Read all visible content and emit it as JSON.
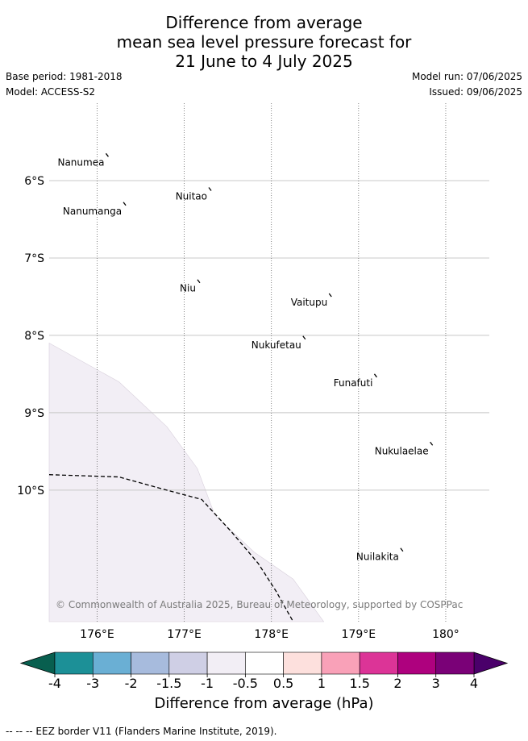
{
  "title": {
    "line1": "Difference from average",
    "line2": "mean sea level pressure forecast for",
    "line3": "21 June to 4 July 2025"
  },
  "meta": {
    "base_period": "Base period: 1981-2018",
    "model": "Model: ACCESS-S2",
    "model_run": "Model run: 07/06/2025",
    "issued": "Issued: 09/06/2025"
  },
  "map": {
    "lon_range": [
      175.45,
      180.5
    ],
    "lat_range": [
      -11.7,
      -5.0
    ],
    "lon_ticks": [
      {
        "value": 176,
        "label": "176°E"
      },
      {
        "value": 177,
        "label": "177°E"
      },
      {
        "value": 178,
        "label": "178°E"
      },
      {
        "value": 179,
        "label": "179°E"
      },
      {
        "value": 180,
        "label": "180°"
      }
    ],
    "lat_ticks": [
      {
        "value": -6,
        "label": "6°S"
      },
      {
        "value": -7,
        "label": "7°S"
      },
      {
        "value": -8,
        "label": "8°S"
      },
      {
        "value": -9,
        "label": "9°S"
      },
      {
        "value": -10,
        "label": "10°S"
      }
    ],
    "islands": [
      {
        "name": "Nanumea",
        "lon": 176.12,
        "lat": -5.67
      },
      {
        "name": "Nuitao",
        "lon": 177.3,
        "lat": -6.11
      },
      {
        "name": "Nanumanga",
        "lon": 176.32,
        "lat": -6.3
      },
      {
        "name": "Niu",
        "lon": 177.17,
        "lat": -7.3
      },
      {
        "name": "Vaitupu",
        "lon": 178.68,
        "lat": -7.48
      },
      {
        "name": "Nukufetau",
        "lon": 178.38,
        "lat": -8.03
      },
      {
        "name": "Funafuti",
        "lon": 179.2,
        "lat": -8.52
      },
      {
        "name": "Nukulaelae",
        "lon": 179.84,
        "lat": -9.4
      },
      {
        "name": "Nuilakita",
        "lon": 179.5,
        "lat": -10.77
      }
    ],
    "anomaly_region": {
      "category": "-1 to -0.5",
      "color": "#f2eef5",
      "boundary": [
        [
          175.45,
          -8.1
        ],
        [
          176.25,
          -8.6
        ],
        [
          176.8,
          -9.18
        ],
        [
          177.15,
          -9.72
        ],
        [
          177.35,
          -10.32
        ],
        [
          177.8,
          -10.8
        ],
        [
          178.25,
          -11.15
        ],
        [
          178.6,
          -11.7
        ],
        [
          175.45,
          -11.7
        ]
      ]
    },
    "eez_border": [
      [
        175.45,
        -9.8
      ],
      [
        176.25,
        -9.83
      ],
      [
        176.8,
        -10.0
      ],
      [
        177.2,
        -10.12
      ],
      [
        177.55,
        -10.55
      ],
      [
        177.85,
        -10.95
      ],
      [
        178.05,
        -11.3
      ],
      [
        178.25,
        -11.7
      ]
    ],
    "copyright": "© Commonwealth of Australia 2025, Bureau of Meteorology, supported by COSPPac"
  },
  "colorbar": {
    "title": "Difference from average (hPa)",
    "colors": [
      "#085f4f",
      "#1c9097",
      "#6aafd4",
      "#a7bbdd",
      "#cfcfe5",
      "#f2eef5",
      "#ffffff",
      "#fde0dd",
      "#f9a1b8",
      "#dc3497",
      "#ae017e",
      "#7a0177",
      "#4a006a"
    ],
    "tick_labels": [
      "-4",
      "-3",
      "-2",
      "-1.5",
      "-1",
      "-0.5",
      "0.5",
      "1",
      "1.5",
      "2",
      "3",
      "4"
    ]
  },
  "footer": {
    "legend": "--  --  -- EEZ border V11 (Flanders Marine Institute, 2019)."
  }
}
